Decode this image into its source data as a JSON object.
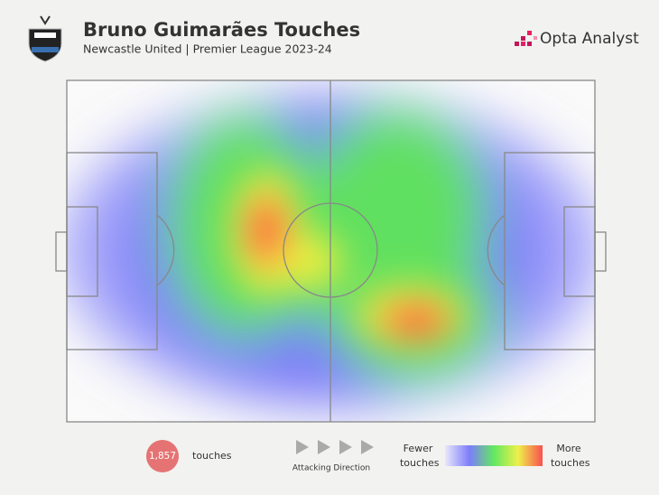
{
  "header": {
    "title": "Bruno Guimarães Touches",
    "subtitle": "Newcastle United | Premier League 2023-24",
    "brand": "Opta Analyst"
  },
  "footer": {
    "touches_count": "1,857",
    "touches_label": "touches",
    "direction_label": "Attacking Direction",
    "legend_low": "Fewer touches",
    "legend_high": "More touches"
  }
}
